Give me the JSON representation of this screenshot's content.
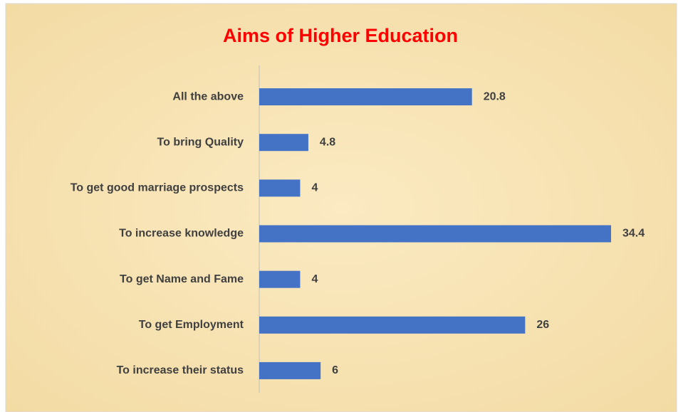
{
  "chart_data": {
    "type": "bar",
    "orientation": "horizontal",
    "title": "Aims of Higher Education",
    "categories": [
      "All the above",
      "To bring Quality",
      "To get good marriage prospects",
      "To increase knowledge",
      "To get Name and Fame",
      "To get Employment",
      "To increase their status"
    ],
    "values": [
      20.8,
      4.8,
      4,
      34.4,
      4,
      26,
      6
    ],
    "color": "#4472c4",
    "title_color": "#ff0000",
    "xlim": [
      0,
      40
    ],
    "grid": false
  }
}
